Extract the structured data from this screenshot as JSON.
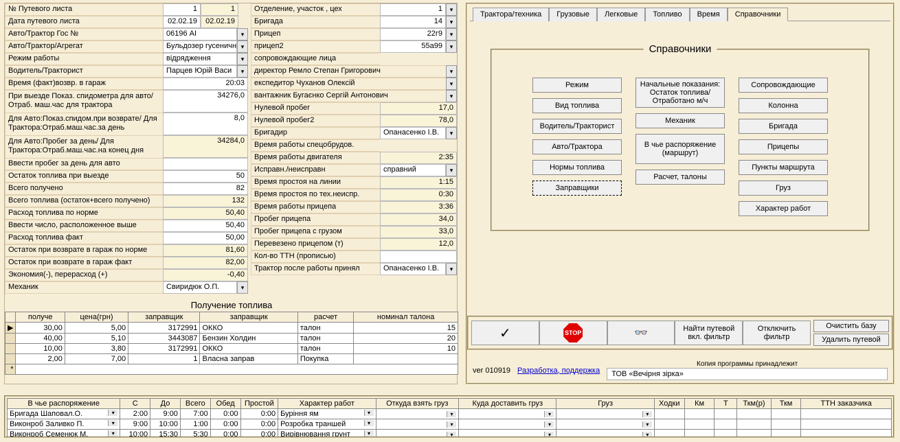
{
  "left": {
    "rows": [
      {
        "label": "№ Путевого листа",
        "v1": "1",
        "v2": "1",
        "dd": false
      },
      {
        "label": "Дата путевого листа",
        "v1": "02.02.19",
        "v2": "02.02.19",
        "dd": false
      },
      {
        "label": "Авто/Трактор Гос №",
        "v1": "06196 АІ",
        "v2": "",
        "dd": true,
        "wide": true
      },
      {
        "label": "Авто/Трактор/Агрегат",
        "v1": "Бульдозер гусеничн",
        "v2": "",
        "dd": true,
        "wide": true
      },
      {
        "label": "Режим работы",
        "v1": "відрядження",
        "v2": "",
        "dd": true,
        "wide": true
      },
      {
        "label": "Водитель/Тракторист",
        "v1": "Парцев Юрій Васи",
        "v2": "",
        "dd": true,
        "wide": true
      },
      {
        "label": "Время (факт)возвр. в гараж",
        "v1": "20:03",
        "single": true
      },
      {
        "label": "При выезде Показ. спидометра для авто/ Отраб. маш.час для трактора",
        "v1": "34276,0",
        "single": true,
        "tall": true
      },
      {
        "label": "Для Авто:Показ.спидом.при возврате/ Для Трактора:Отраб.маш.час.за день",
        "v1": "8,0",
        "single": true,
        "tall": true
      },
      {
        "label": "Для Авто:Пробег за день/ Для Трактора:Отраб.маш.час.на конец дня",
        "v1": "34284,0",
        "single": true,
        "tall": true,
        "ro": true
      },
      {
        "label": "Ввести пробег за день для авто",
        "v1": "",
        "single": true
      },
      {
        "label": "Остаток топлива при выезде",
        "v1": "50",
        "single": true
      },
      {
        "label": "Всего получено",
        "v1": "82",
        "single": true
      },
      {
        "label": "Всего топлива (остаток+всего получено)",
        "v1": "132",
        "single": true,
        "ro": true
      },
      {
        "label": "Расход топлива по норме",
        "v1": "50,40",
        "single": true,
        "ro": true
      },
      {
        "label": "Ввести число, расположенное выше",
        "v1": "50,40",
        "single": true
      },
      {
        "label": "Расход топлива факт",
        "v1": "50,00",
        "single": true
      },
      {
        "label": "Остаток при возврате в гараж по норме",
        "v1": "81,60",
        "single": true,
        "ro": true
      },
      {
        "label": "Остаток при возврате в гараж  факт",
        "v1": "82,00",
        "single": true,
        "ro": true
      },
      {
        "label": "Экономия(-), перерасход (+)",
        "v1": "-0,40",
        "single": true,
        "ro": true
      },
      {
        "label": "Механик",
        "v1": "Свиридюк О.П.",
        "dd": true,
        "wide": true,
        "lt": true
      }
    ]
  },
  "right": {
    "rows": [
      {
        "label": "Отделение, участок , цех",
        "v": "1",
        "dd": true
      },
      {
        "label": "Бригада",
        "v": "14",
        "dd": true
      },
      {
        "label": "Прицеп",
        "v": "22г9",
        "dd": true
      },
      {
        "label": "прицеп2",
        "v": "55а99",
        "dd": true
      },
      {
        "label": "сопровождающие лица",
        "v": "",
        "none": true
      },
      {
        "label": "директор Ремло Степан Григорович",
        "v": "",
        "full": true,
        "dd": true
      },
      {
        "label": "експедитор Чуханов Олексій",
        "v": "",
        "full": true,
        "dd": true
      },
      {
        "label": "вантажник Бугаєнко Сергій Антонович",
        "v": "",
        "full": true,
        "dd": true
      },
      {
        "label": "Нулевой пробег",
        "v": "17,0",
        "y": true
      },
      {
        "label": "Нулевой пробег2",
        "v": "78,0",
        "y": true
      },
      {
        "label": "Бригадир",
        "v": "Опанасенко І.В.",
        "dd": true,
        "lt": true
      },
      {
        "label": "Время работы спецобрудов.",
        "v": "",
        "none": true
      },
      {
        "label": "Время работы двигателя",
        "v": "2:35",
        "y": true
      },
      {
        "label": "Исправн./неисправн",
        "v": "справний",
        "dd": true,
        "lt": true
      },
      {
        "label": "Время простоя на линии",
        "v": "1:15",
        "y": true
      },
      {
        "label": "Время простоя по тех.неиспр.",
        "v": "0:30",
        "y": true
      },
      {
        "label": "Время работы прицепа",
        "v": "3:36",
        "y": true
      },
      {
        "label": "Пробег прицепа",
        "v": "34,0",
        "y": true
      },
      {
        "label": "Пробег прицепа с грузом",
        "v": "33,0",
        "y": true
      },
      {
        "label": "Перевезено прицепом (т)",
        "v": "12,0",
        "y": true
      },
      {
        "label": "Кол-во ТТН (прописью)",
        "v": ""
      },
      {
        "label": "Трактор после работы принял",
        "v": "Опанасенко І.В.",
        "dd": true,
        "lt": true
      }
    ]
  },
  "fuel": {
    "title": "Получение топлива",
    "headers": [
      "получе",
      "цена(грн)",
      "заправщик",
      "заправщик",
      "расчет",
      "номинал талона"
    ],
    "rows": [
      [
        "30,00",
        "5,00",
        "3172991",
        "ОККО",
        "талон",
        "15"
      ],
      [
        "40,00",
        "5,10",
        "3443087",
        "Бензин Холдин",
        "талон",
        "20"
      ],
      [
        "10,00",
        "3,80",
        "3172991",
        "ОККО",
        "талон",
        "10"
      ],
      [
        "2,00",
        "7,00",
        "1",
        "Власна заправ",
        "Покупка",
        ""
      ]
    ]
  },
  "tabs": [
    "Трактора/техника",
    "Грузовые",
    "Легковые",
    "Топливо",
    "Время",
    "Справочники"
  ],
  "active_tab": 5,
  "ref": {
    "title": "Справочники",
    "col1": [
      "Режим",
      "Вид топлива",
      "Водитель/Тракторист",
      "Авто/Трактора",
      "Нормы топлива",
      "Заправщики"
    ],
    "col2": [
      "Начальные показания: Остаток топлива/ Отработано м/ч",
      "Механик",
      "В чье распоряжение (маршрут)",
      "Расчет, талоны"
    ],
    "col3": [
      "Сопровождающие",
      "Колонна",
      "Бригада",
      "Прицепы",
      "Пункты маршрута",
      "Груз",
      "Характер работ"
    ]
  },
  "toolbar": {
    "find": "Найти путевой вкл. фильтр",
    "filter": "Отключить фильтр",
    "clear": "Очистить базу",
    "delete": "Удалить путевой",
    "stop": "STOP"
  },
  "footer": {
    "ver": "ver 010919",
    "link": "Разработка, поддержка",
    "copy": "Копия программы принадлежит",
    "owner": "ТОВ «Вечірня зірка»"
  },
  "bottom": {
    "headers": [
      "В чье распоряжение",
      "С",
      "До",
      "Всего",
      "Обед",
      "Простой",
      "Характер работ",
      "Откуда взять груз",
      "Куда доставить груз",
      "Груз",
      "Ходки",
      "Км",
      "Т",
      "Ткм(р)",
      "Ткм",
      "ТТН заказчика"
    ],
    "rows": [
      [
        "Бригада Шаповал.О.",
        "2:00",
        "9:00",
        "7:00",
        "0:00",
        "0:00",
        "Буріння ям",
        "",
        "",
        "",
        "",
        "",
        "",
        "",
        "",
        ""
      ],
      [
        "Виконроб Заливко П.",
        "9:00",
        "10:00",
        "1:00",
        "0:00",
        "0:00",
        "Розробка траншей",
        "",
        "",
        "",
        "",
        "",
        "",
        "",
        "",
        ""
      ],
      [
        "Виконроб Семенюк М.",
        "10:00",
        "15:30",
        "5:30",
        "0:00",
        "0:00",
        "Вирівнювання грунт",
        "",
        "",
        "",
        "",
        "",
        "",
        "",
        "",
        ""
      ]
    ]
  }
}
